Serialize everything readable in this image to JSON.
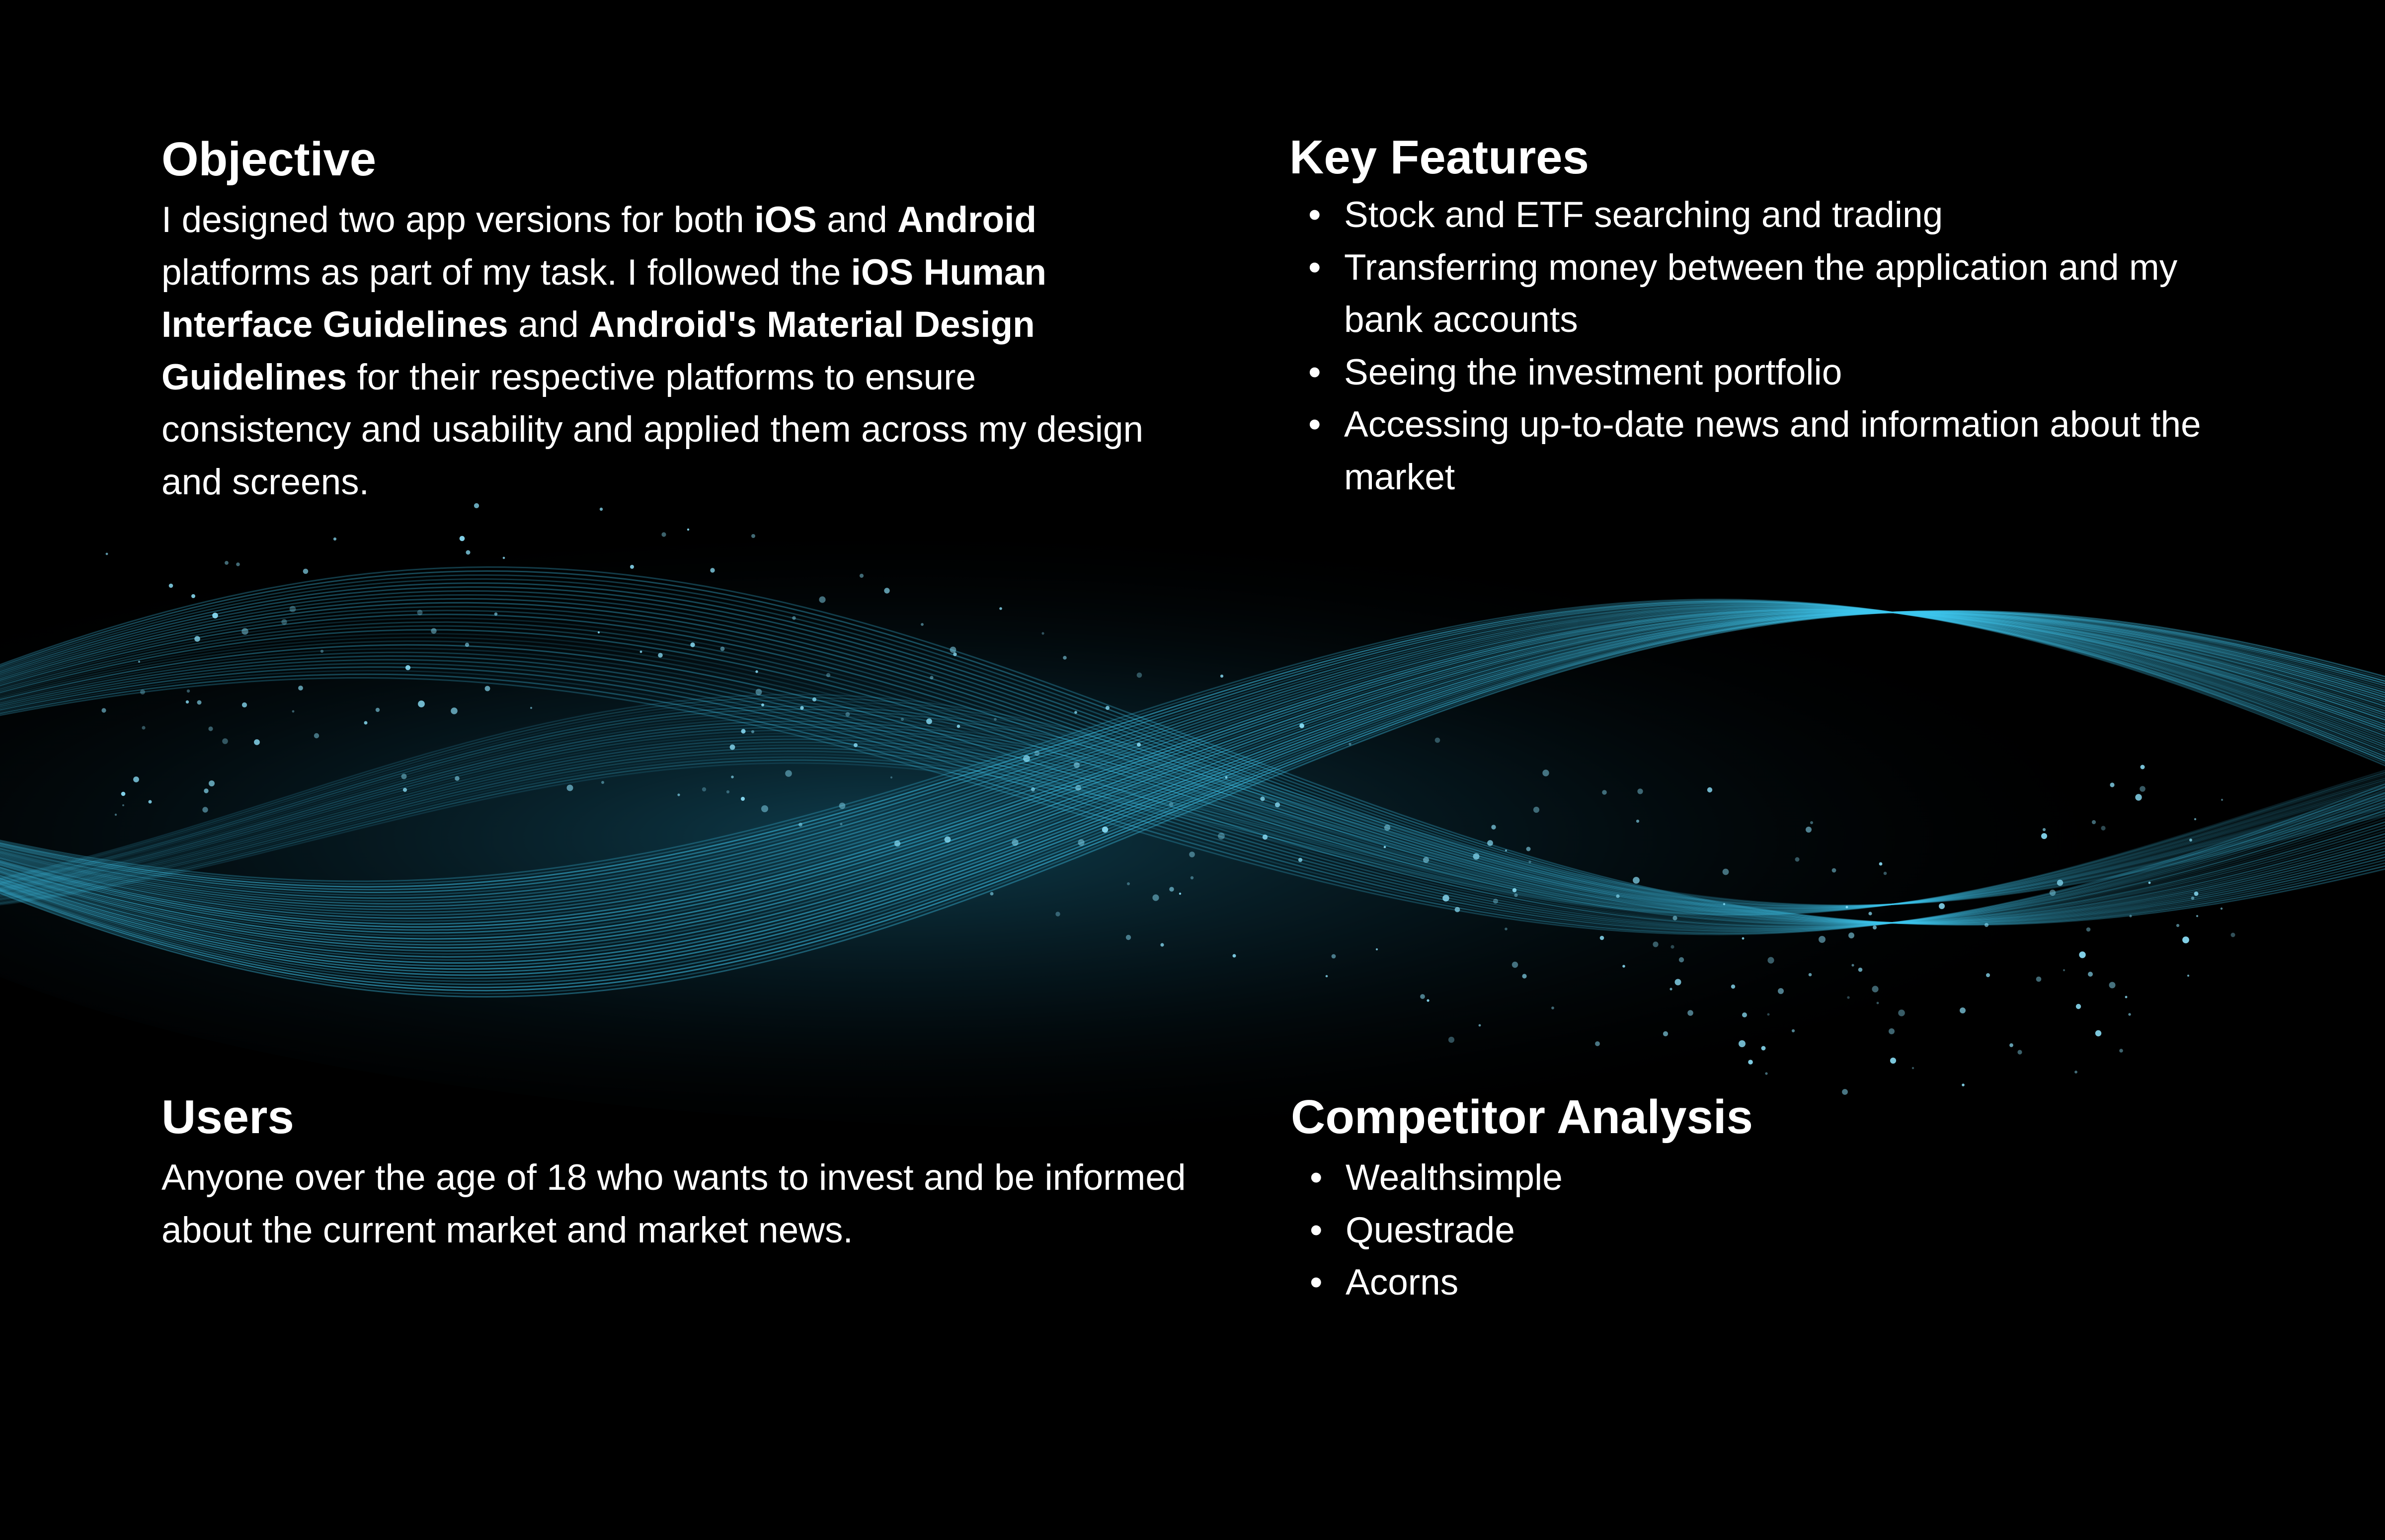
{
  "colors": {
    "background": "#000000",
    "wave_accent": "#3ec8f0",
    "text": "#ffffff"
  },
  "objective": {
    "heading": "Objective",
    "body": [
      {
        "text": "I designed two app versions for both ",
        "bold": false
      },
      {
        "text": "iOS",
        "bold": true
      },
      {
        "text": " and ",
        "bold": false
      },
      {
        "text": "Android",
        "bold": true
      },
      {
        "text": " platforms as part of my task. I followed the ",
        "bold": false
      },
      {
        "text": "iOS Human Interface Guidelines",
        "bold": true
      },
      {
        "text": " and ",
        "bold": false
      },
      {
        "text": "Android's Material Design Guidelines",
        "bold": true
      },
      {
        "text": " for their respective platforms to ensure consistency and usability and applied them across my design and screens.",
        "bold": false
      }
    ]
  },
  "key_features": {
    "heading": "Key Features",
    "items": [
      "Stock and ETF searching and trading",
      "Transferring money between the application and my bank accounts",
      "Seeing the investment portfolio",
      "Accessing up-to-date news and information about the market"
    ]
  },
  "users": {
    "heading": "Users",
    "body": "Anyone over the age of 18 who wants to invest and be informed about the current market and market news."
  },
  "competitor_analysis": {
    "heading": "Competitor Analysis",
    "items": [
      "Wealthsimple",
      "Questrade",
      "Acorns"
    ]
  },
  "bullet_glyph": "•"
}
